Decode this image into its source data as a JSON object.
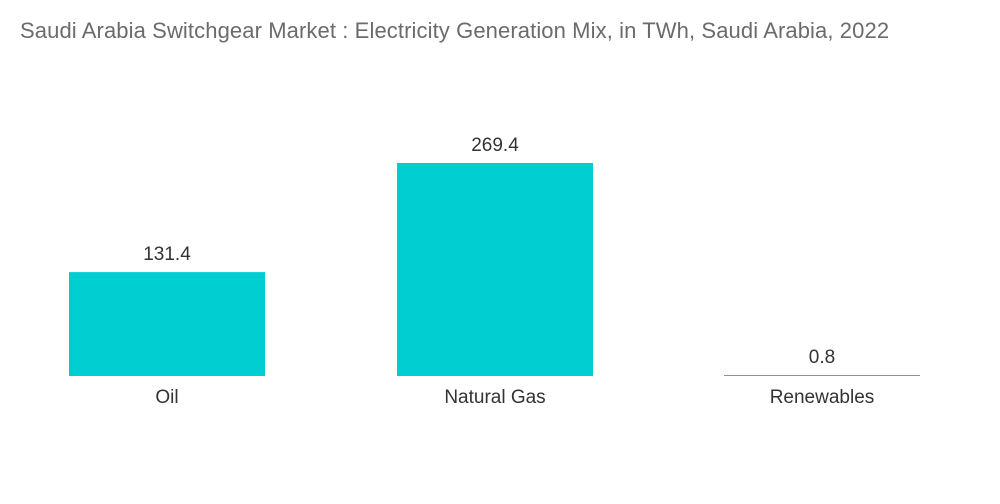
{
  "colors": {
    "bar": "#00ced1",
    "title": "#6b6b6b",
    "label": "#333333",
    "background": "#ffffff"
  },
  "chart_data": {
    "type": "bar",
    "title": "Saudi Arabia Switchgear Market : Electricity Generation Mix, in TWh, Saudi Arabia, 2022",
    "categories": [
      "Oil",
      "Natural Gas",
      "Renewables"
    ],
    "values": [
      131.4,
      269.4,
      0.8
    ],
    "value_labels": [
      "131.4",
      "269.4",
      "0.8"
    ],
    "xlabel": "",
    "ylabel": "",
    "ylim": [
      0,
      269.4
    ],
    "grid": false,
    "legend": "none"
  }
}
